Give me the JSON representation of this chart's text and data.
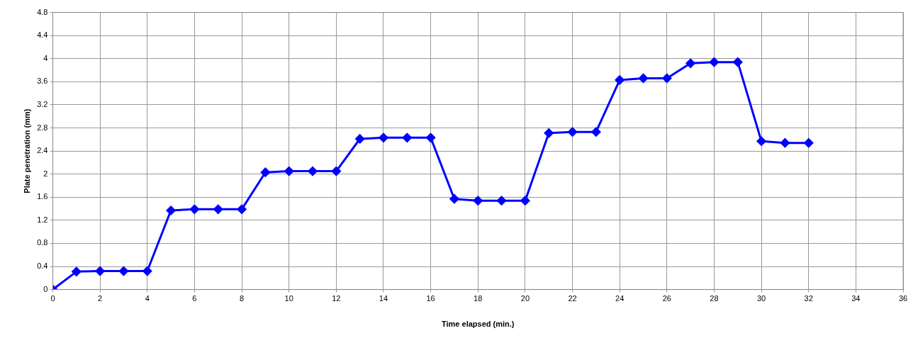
{
  "chart_data": {
    "type": "line",
    "xlabel": "Time elapsed (min.)",
    "ylabel": "Plate penetration (mm)",
    "x": [
      0,
      1,
      2,
      3,
      4,
      5,
      6,
      7,
      8,
      9,
      10,
      11,
      12,
      13,
      14,
      15,
      16,
      17,
      18,
      19,
      20,
      21,
      22,
      23,
      24,
      25,
      26,
      27,
      28,
      29,
      30,
      31,
      32
    ],
    "series": [
      {
        "color": "#0000ff",
        "values": [
          0,
          0.31,
          0.32,
          0.32,
          0.32,
          1.37,
          1.39,
          1.39,
          1.39,
          2.03,
          2.05,
          2.05,
          2.05,
          2.61,
          2.63,
          2.63,
          2.63,
          1.57,
          1.54,
          1.54,
          1.54,
          2.71,
          2.73,
          2.73,
          3.63,
          3.66,
          3.66,
          3.92,
          3.94,
          3.94,
          2.57,
          2.54,
          2.54
        ]
      }
    ],
    "xlim": [
      0,
      36
    ],
    "xticks": [
      0,
      2,
      4,
      6,
      8,
      10,
      12,
      14,
      16,
      18,
      20,
      22,
      24,
      26,
      28,
      30,
      32,
      34,
      36
    ],
    "ylim": [
      0,
      4.8
    ],
    "yticks": [
      0,
      0.4,
      0.8,
      1.2,
      1.6,
      2,
      2.4,
      2.8,
      3.2,
      3.6,
      4,
      4.4,
      4.8
    ],
    "grid": true,
    "legend": false,
    "marker": "diamond",
    "line_style": "solid"
  }
}
